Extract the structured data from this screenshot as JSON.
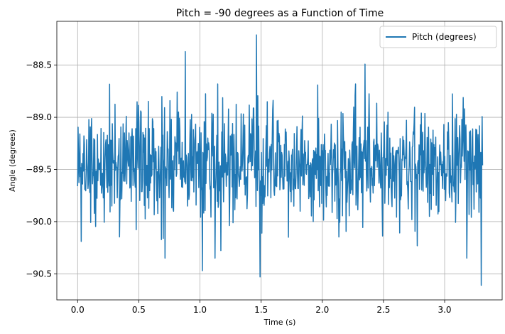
{
  "chart_data": {
    "type": "line",
    "title": "Pitch = -90 degrees as a Function of Time",
    "xlabel": "Time (s)",
    "ylabel": "Angle (degrees)",
    "xlim": [
      -0.17,
      3.47
    ],
    "ylim": [
      -90.75,
      -88.08
    ],
    "xticks": [
      0.0,
      0.5,
      1.0,
      1.5,
      2.0,
      2.5,
      3.0
    ],
    "xtick_labels": [
      "0.0",
      "0.5",
      "1.0",
      "1.5",
      "2.0",
      "2.5",
      "3.0"
    ],
    "yticks": [
      -88.5,
      -89.0,
      -89.5,
      -90.0,
      -90.5
    ],
    "ytick_labels": [
      "−88.5",
      "−89.0",
      "−89.5",
      "−90.0",
      "−90.5"
    ],
    "grid": true,
    "legend": {
      "position": "top-right"
    },
    "series": [
      {
        "name": "Pitch (degrees)",
        "color": "#1f77b4",
        "x_start": 0.0,
        "x_end": 3.31,
        "n_points": 900,
        "mean": -89.45,
        "noise_std": 0.28,
        "extremes": [
          {
            "x": 0.0,
            "y": -89.66
          },
          {
            "x": 0.02,
            "y": -89.16
          },
          {
            "x": 0.03,
            "y": -90.19
          },
          {
            "x": 0.88,
            "y": -88.37
          },
          {
            "x": 1.02,
            "y": -90.47
          },
          {
            "x": 1.46,
            "y": -88.21
          },
          {
            "x": 1.49,
            "y": -90.53
          },
          {
            "x": 2.35,
            "y": -88.49
          },
          {
            "x": 3.3,
            "y": -90.61
          },
          {
            "x": 3.31,
            "y": -89.46
          }
        ]
      }
    ]
  }
}
